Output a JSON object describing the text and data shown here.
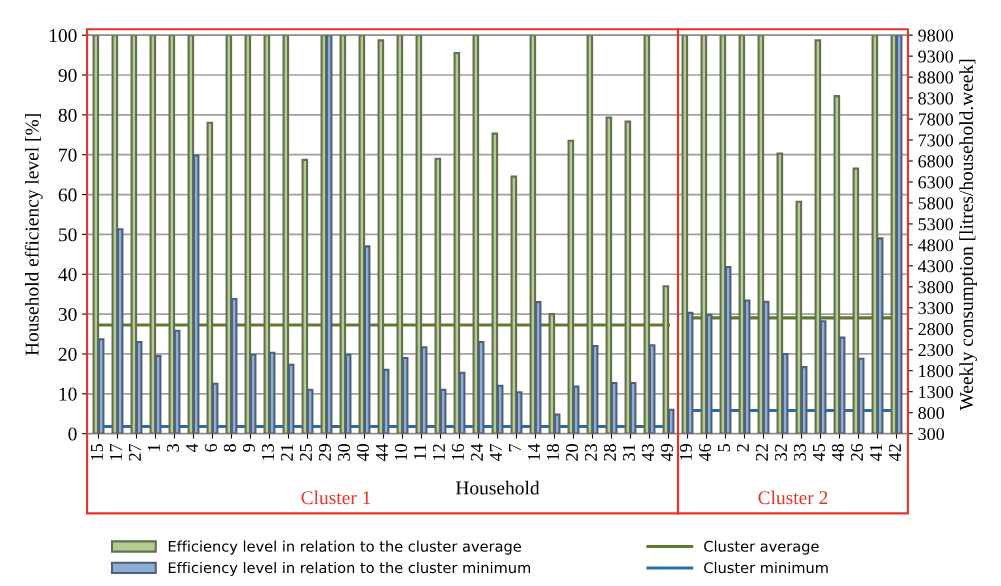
{
  "chart_data": {
    "type": "bar",
    "xlabel": "Household",
    "ylabel": "Household efficiency level [%]",
    "y2label": "Weekly consumption [litres/household.week]",
    "categories": [
      "15",
      "17",
      "27",
      "1",
      "3",
      "4",
      "6",
      "8",
      "9",
      "13",
      "21",
      "25",
      "29",
      "30",
      "40",
      "44",
      "10",
      "11",
      "12",
      "16",
      "24",
      "47",
      "7",
      "14",
      "18",
      "20",
      "23",
      "28",
      "31",
      "43",
      "49",
      "19",
      "46",
      "5",
      "2",
      "22",
      "32",
      "33",
      "45",
      "48",
      "26",
      "41",
      "42"
    ],
    "series": [
      {
        "name": "Efficiency level in relation to the cluster average",
        "color": "#b3cc8f",
        "values": [
          100,
          100,
          100,
          100,
          100,
          100,
          78,
          100,
          100,
          100,
          100,
          68.7,
          100,
          100,
          100,
          98.7,
          100,
          100,
          69,
          95.5,
          100,
          75.3,
          64.5,
          100,
          30,
          73.5,
          100,
          79.3,
          78.3,
          100,
          37,
          100,
          100,
          100,
          100,
          100,
          70.3,
          58.2,
          98.7,
          84.7,
          66.5,
          100,
          100
        ]
      },
      {
        "name": "Efficiency level in relation to the cluster minimum",
        "color": "#8eaed8",
        "values": [
          23.7,
          51.3,
          23,
          19.5,
          25.8,
          69.8,
          12.5,
          33.8,
          19.8,
          20.3,
          17.3,
          11,
          100,
          19.8,
          47,
          16,
          19,
          21.7,
          11,
          15.3,
          23,
          12,
          10.4,
          33,
          4.8,
          11.8,
          22,
          12.7,
          12.7,
          22.2,
          6,
          30.3,
          29.8,
          41.8,
          33.4,
          33.1,
          20,
          16.7,
          28.2,
          24.1,
          18.8,
          49,
          100
        ]
      },
      {
        "name": "Cluster average",
        "type": "line",
        "axis": "y2",
        "color": "#5f7a30",
        "values": [
          2890,
          2890,
          2890,
          2890,
          2890,
          2890,
          2890,
          2890,
          2890,
          2890,
          2890,
          2890,
          2890,
          2890,
          2890,
          2890,
          2890,
          2890,
          2890,
          2890,
          2890,
          2890,
          2890,
          2890,
          2890,
          2890,
          2890,
          2890,
          2890,
          2890,
          2890,
          null,
          null,
          null,
          null,
          null,
          null,
          null,
          null,
          null,
          null,
          null,
          null
        ]
      },
      {
        "type": "line",
        "axis": "y2",
        "color": "#5f7a30",
        "values": [
          null,
          null,
          null,
          null,
          null,
          null,
          null,
          null,
          null,
          null,
          null,
          null,
          null,
          null,
          null,
          null,
          null,
          null,
          null,
          null,
          null,
          null,
          null,
          null,
          null,
          null,
          null,
          null,
          null,
          null,
          null,
          3060,
          3060,
          3060,
          3060,
          3060,
          3060,
          3060,
          3060,
          3060,
          3060,
          3060,
          3060
        ]
      },
      {
        "name": "Cluster minimum",
        "type": "line",
        "axis": "y2",
        "color": "#2e6aa8",
        "values": [
          470,
          470,
          470,
          470,
          470,
          470,
          470,
          470,
          470,
          470,
          470,
          470,
          470,
          470,
          470,
          470,
          470,
          470,
          470,
          470,
          470,
          470,
          470,
          470,
          470,
          470,
          470,
          470,
          470,
          470,
          470,
          null,
          null,
          null,
          null,
          null,
          null,
          null,
          null,
          null,
          null,
          null,
          null
        ]
      },
      {
        "type": "line",
        "axis": "y2",
        "color": "#2e6aa8",
        "values": [
          null,
          null,
          null,
          null,
          null,
          null,
          null,
          null,
          null,
          null,
          null,
          null,
          null,
          null,
          null,
          null,
          null,
          null,
          null,
          null,
          null,
          null,
          null,
          null,
          null,
          null,
          null,
          null,
          null,
          null,
          null,
          850,
          850,
          850,
          850,
          850,
          850,
          850,
          850,
          850,
          850,
          850,
          850
        ]
      }
    ],
    "ylim": [
      0,
      100
    ],
    "yticks": [
      0,
      10,
      20,
      30,
      40,
      50,
      60,
      70,
      80,
      90,
      100
    ],
    "y2lim": [
      300,
      9800
    ],
    "y2ticks": [
      300,
      800,
      1300,
      1800,
      2300,
      2800,
      3300,
      3800,
      4300,
      4800,
      5300,
      5800,
      6300,
      6800,
      7300,
      7800,
      8300,
      8800,
      9300,
      9800
    ],
    "annotations": [
      "Cluster 1",
      "Cluster 2"
    ],
    "grid": "y",
    "legend": "bottom"
  }
}
